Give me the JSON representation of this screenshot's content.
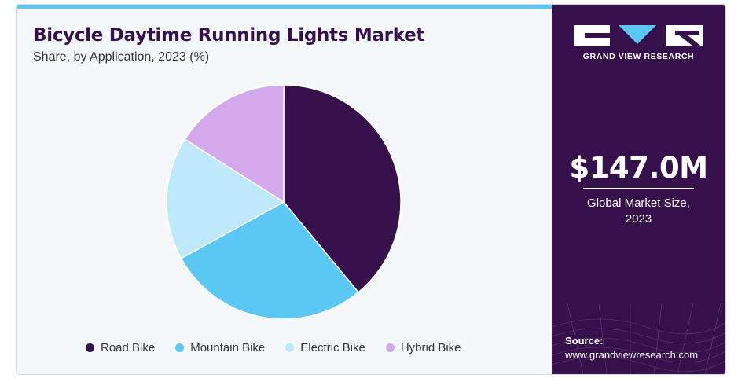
{
  "header": {
    "title": "Bicycle Daytime Running Lights Market",
    "subtitle": "Share, by Application, 2023 (%)"
  },
  "chart_data": {
    "type": "pie",
    "title": "Bicycle Daytime Running Lights Market",
    "subtitle": "Share, by Application, 2023 (%)",
    "categories": [
      "Road Bike",
      "Mountain Bike",
      "Electric Bike",
      "Hybrid Bike"
    ],
    "values": [
      39,
      28,
      17,
      16
    ],
    "colors": [
      "#36104a",
      "#5bc8f3",
      "#bfe9fb",
      "#d4a9ec"
    ],
    "legend_position": "bottom"
  },
  "brand": {
    "name": "GRAND VIEW RESEARCH"
  },
  "summary": {
    "value": "$147.0M",
    "label_line1": "Global Market Size,",
    "label_line2": "2023"
  },
  "source": {
    "title": "Source:",
    "url": "www.grandviewresearch.com"
  }
}
